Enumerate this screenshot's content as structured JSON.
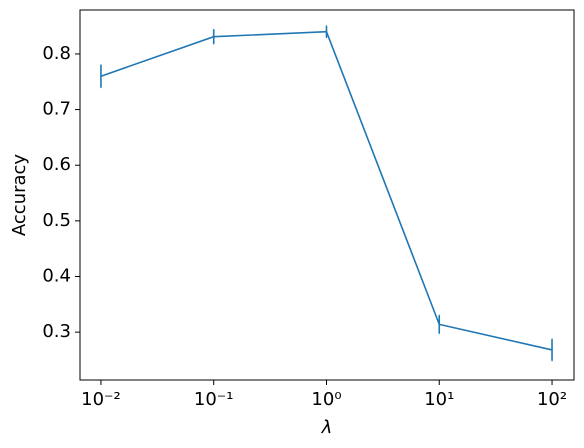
{
  "chart_data": {
    "type": "line",
    "x_label": "λ",
    "y_label": "Accuracy",
    "x_log": true,
    "x": [
      0.01,
      0.1,
      1,
      10,
      100
    ],
    "series": [
      {
        "color": "#1f77b4",
        "values": [
          0.76,
          0.831,
          0.84,
          0.314,
          0.268
        ],
        "errors": [
          0.02,
          0.0126,
          0.01,
          0.016,
          0.019
        ]
      }
    ],
    "xlim": [
      0.00652,
      156.6
    ],
    "ylim": [
      0.214,
      0.879
    ],
    "xticks": [
      {
        "value": 0.01,
        "label": "10⁻²"
      },
      {
        "value": 0.1,
        "label": "10⁻¹"
      },
      {
        "value": 1,
        "label": "10⁰"
      },
      {
        "value": 10,
        "label": "10¹"
      },
      {
        "value": 100,
        "label": "10²"
      }
    ],
    "yticks": [
      0.3,
      0.4,
      0.5,
      0.6,
      0.7,
      0.8
    ]
  }
}
